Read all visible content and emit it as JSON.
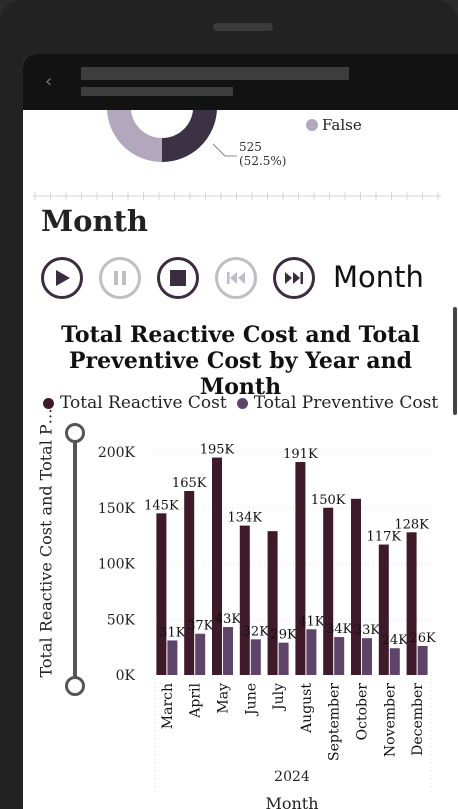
{
  "colors": {
    "reactive": "#3e1a2b",
    "preventive": "#5e4469",
    "donut_dark": "#3b3245",
    "donut_light": "#b2a7bd"
  },
  "donut": {
    "legend_false": "False",
    "slice_value": "525",
    "slice_percent": "(52.5%)"
  },
  "slicer": {
    "title": "Month"
  },
  "play_axis": {
    "label": "Month",
    "buttons": [
      "play-icon",
      "pause-icon",
      "stop-icon",
      "previous-icon",
      "next-icon"
    ]
  },
  "chart_data": {
    "type": "bar",
    "title": "Total Reactive Cost and Total Preventive Cost by Year and Month",
    "title_line1": "Total Reactive Cost and Total",
    "title_line2": "Preventive Cost by Year and Month",
    "ylabel": "Total Reactive Cost and Total P…",
    "xlabel": "Month",
    "x_group": "2024",
    "ylim": [
      0,
      200000
    ],
    "yticks": [
      "0K",
      "50K",
      "100K",
      "150K",
      "200K"
    ],
    "categories": [
      "March",
      "April",
      "May",
      "June",
      "July",
      "August",
      "September",
      "October",
      "November",
      "December"
    ],
    "series": [
      {
        "name": "Total Reactive Cost",
        "values": [
          145000,
          165000,
          195000,
          134000,
          129000,
          191000,
          150000,
          158000,
          117000,
          128000
        ],
        "labels": [
          "145K",
          "165K",
          "195K",
          "134K",
          "",
          "191K",
          "150K",
          "",
          "117K",
          "128K"
        ]
      },
      {
        "name": "Total Preventive Cost",
        "values": [
          31000,
          37000,
          43000,
          32000,
          29000,
          41000,
          34000,
          33000,
          24000,
          26000
        ],
        "labels": [
          "31K",
          "37K",
          "43K",
          "32K",
          "29K",
          "41K",
          "34K",
          "33K",
          "24K",
          "26K"
        ]
      }
    ],
    "grid": true,
    "legend_position": "top"
  }
}
